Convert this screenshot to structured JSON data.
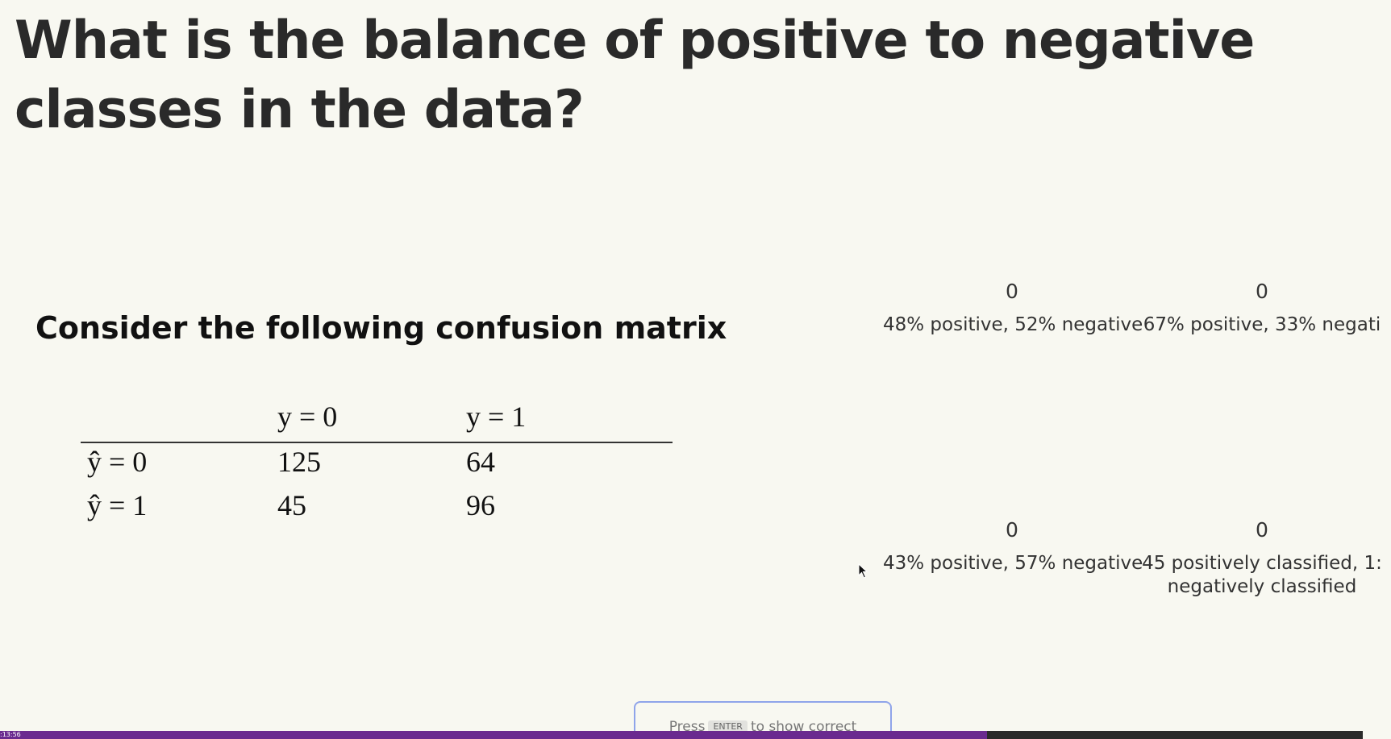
{
  "question": {
    "title": "What is the balance of positive to negative classes in the data?"
  },
  "slide": {
    "heading": "Consider the following confusion matrix",
    "matrix": {
      "col_headers": [
        "y = 0",
        "y = 1"
      ],
      "rows": [
        {
          "label": "ŷ = 0",
          "values": [
            "125",
            "64"
          ]
        },
        {
          "label": "ŷ = 1",
          "values": [
            "45",
            "96"
          ]
        }
      ]
    }
  },
  "options": [
    {
      "count": "0",
      "label": "48% positive, 52% negative"
    },
    {
      "count": "0",
      "label": "67% positive, 33% negati"
    },
    {
      "count": "0",
      "label": "43% positive, 57% negative"
    },
    {
      "count": "0",
      "label": "45 positively classified, 1:\nnegatively classified"
    }
  ],
  "hint": {
    "press": "Press",
    "key": "ENTER",
    "after": "to show correct"
  },
  "player": {
    "timestamp": ":13:56",
    "progress": 0.724,
    "progress_color": "#6a2a8f"
  },
  "icons": {
    "cursor": "mouse-pointer-icon"
  }
}
